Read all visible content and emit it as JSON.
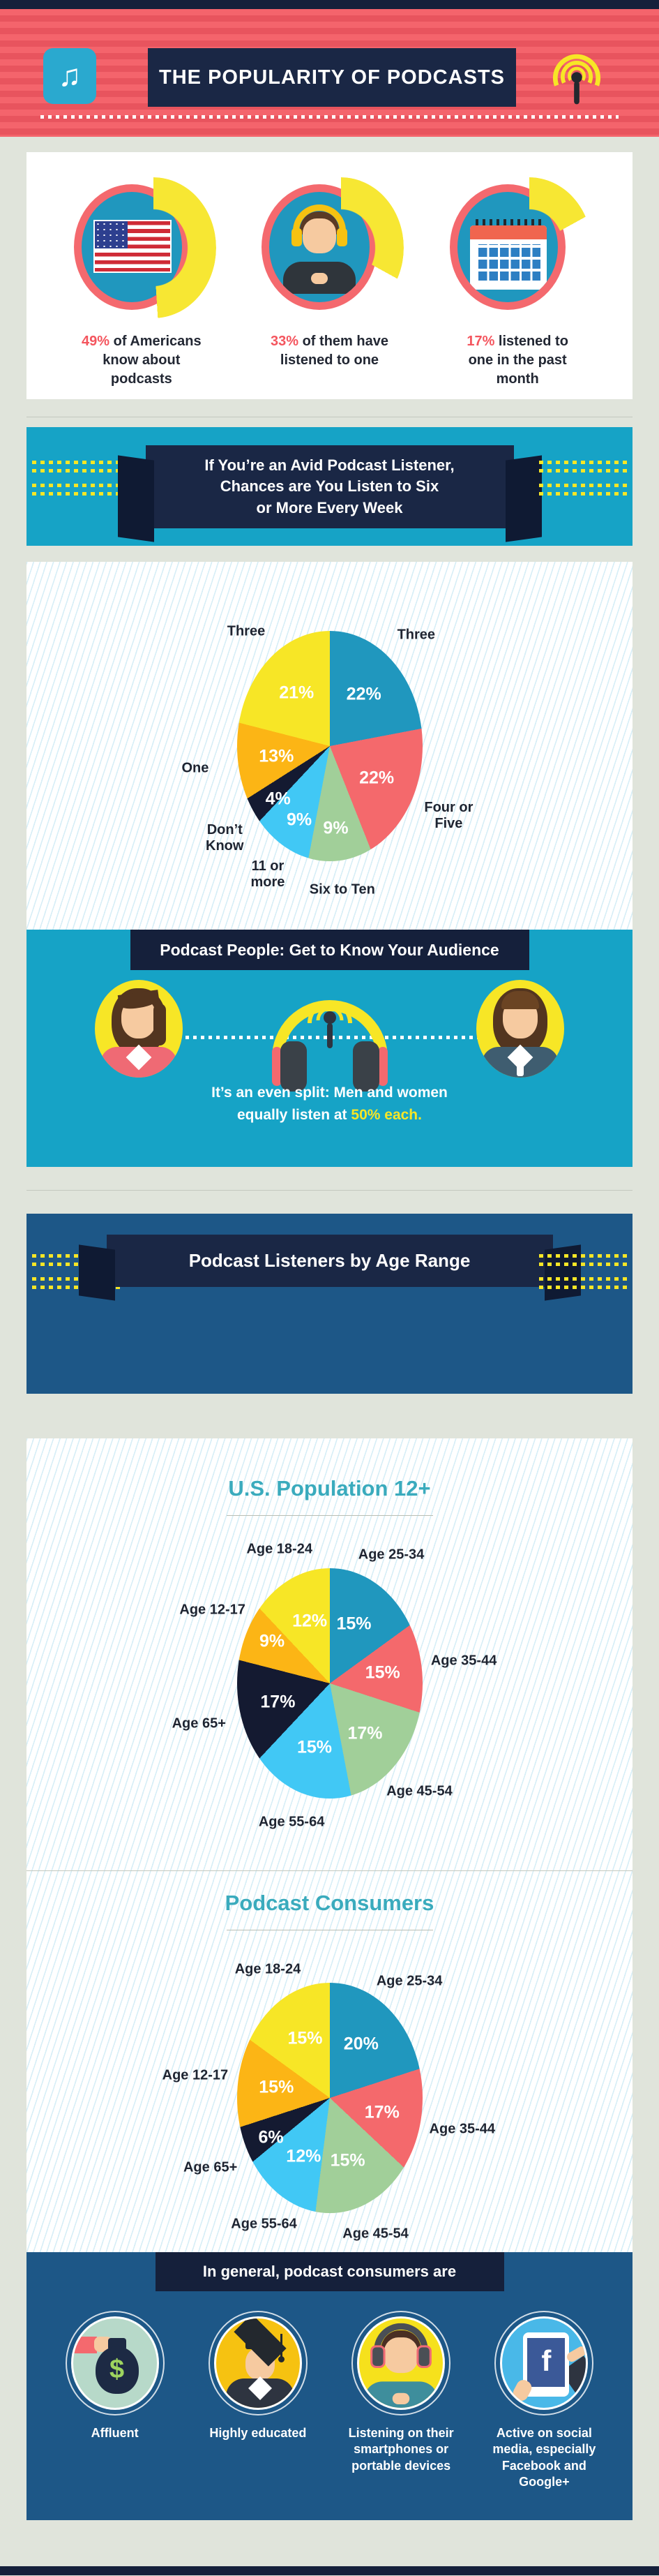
{
  "header": {
    "title": "THE POPULARITY OF PODCASTS"
  },
  "stats": {
    "items": [
      {
        "value": 49,
        "value_text": "49%",
        "text": "of Americans know about podcasts",
        "icon": "us-flag"
      },
      {
        "value": 33,
        "value_text": "33%",
        "text": "of them have listened to one",
        "icon": "listener-headphones"
      },
      {
        "value": 17,
        "value_text": "17%",
        "text": "listened to one in the past month",
        "icon": "calendar"
      }
    ]
  },
  "avid_banner": {
    "line1": "If You’re an Avid Podcast Listener,",
    "line2": "Chances are You Listen to Six",
    "line3": "or More Every Week"
  },
  "audience": {
    "title": "Podcast People: Get to Know Your Audience",
    "caption_line1": "It’s an even split: Men and women",
    "caption_line2_prefix": "equally listen at",
    "caption_highlight": "50% each."
  },
  "age_banner": {
    "title": "Podcast Listeners by Age Range"
  },
  "footer": {
    "title": "In general, podcast consumers are",
    "facebook_letter": "f",
    "items": [
      {
        "label": "Affluent",
        "icon": "money-bag"
      },
      {
        "label": "Highly educated",
        "icon": "graduation-cap"
      },
      {
        "label": "Listening on their smartphones or portable devices",
        "icon": "headphones-listener"
      },
      {
        "label": "Active on social media, especially Facebook and Google+",
        "icon": "facebook-tablet"
      }
    ]
  },
  "chart_data": [
    {
      "type": "pie",
      "title": "",
      "context": "Episodes listened to per week by avid podcast listeners",
      "labels": [
        "Three",
        "Four or Five",
        "Six to Ten",
        "11 or more",
        "Don’t Know",
        "One",
        "Three"
      ],
      "values": [
        22,
        22,
        9,
        9,
        4,
        13,
        21
      ],
      "value_labels": [
        "22%",
        "22%",
        "9%",
        "9%",
        "4%",
        "13%",
        "21%"
      ],
      "colors": [
        "#2097be",
        "#f4696c",
        "#a1cf99",
        "#41c8f5",
        "#141a31",
        "#fcb515",
        "#f7e626"
      ],
      "start_angle_deg": 0,
      "direction": "clockwise",
      "legend": "none"
    },
    {
      "type": "pie",
      "title": "U.S. Population 12+",
      "labels": [
        "Age 25-34",
        "Age 35-44",
        "Age 45-54",
        "Age 55-64",
        "Age 65+",
        "Age 12-17",
        "Age 18-24"
      ],
      "values": [
        15,
        15,
        17,
        15,
        17,
        9,
        12
      ],
      "value_labels": [
        "15%",
        "15%",
        "17%",
        "15%",
        "17%",
        "9%",
        "12%"
      ],
      "colors": [
        "#2097be",
        "#f4696c",
        "#a1cf99",
        "#41c8f5",
        "#141a31",
        "#fcb515",
        "#f7e626"
      ],
      "start_angle_deg": 0,
      "direction": "clockwise",
      "legend": "none"
    },
    {
      "type": "pie",
      "title": "Podcast Consumers",
      "labels": [
        "Age 25-34",
        "Age 35-44",
        "Age 45-54",
        "Age 55-64",
        "Age 65+",
        "Age 12-17",
        "Age 18-24"
      ],
      "values": [
        20,
        17,
        15,
        12,
        6,
        15,
        15
      ],
      "value_labels": [
        "20%",
        "17%",
        "15%",
        "12%",
        "6%",
        "15%",
        "15%"
      ],
      "colors": [
        "#2097be",
        "#f4696c",
        "#a1cf99",
        "#41c8f5",
        "#141a31",
        "#fcb515",
        "#f7e626"
      ],
      "start_angle_deg": 0,
      "direction": "clockwise",
      "legend": "none"
    }
  ],
  "colors": {
    "accent_red": "#f4555e",
    "teal_section": "#16a3c6",
    "dark_blue_section": "#1d5787",
    "navy": "#15203b",
    "highlight_yellow": "#f7e626",
    "arc_yellow": "#f7e733"
  }
}
